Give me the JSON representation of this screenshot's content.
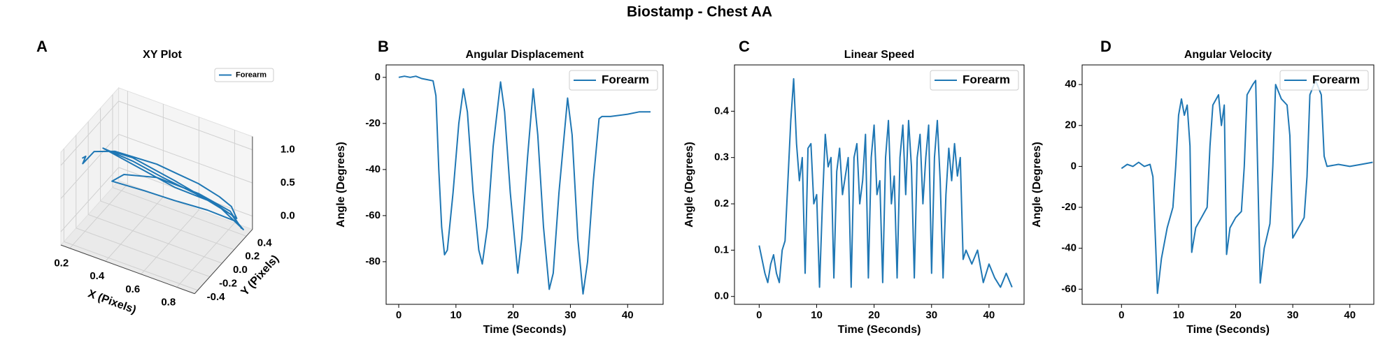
{
  "suptitle": "Biostamp - Chest AA",
  "chart_data": [
    {
      "type": "line3d",
      "panel_label": "A",
      "title": "XY Plot",
      "xlabel": "X (Pixels)",
      "ylabel": "Y (Pixels)",
      "legend": "upper right",
      "xlim": [
        0.15,
        0.9
      ],
      "ylim": [
        -0.45,
        0.5
      ],
      "zlim": [
        -0.2,
        1.2
      ],
      "xticks": [
        0.2,
        0.4,
        0.6,
        0.8
      ],
      "yticks": [
        -0.4,
        -0.2,
        {
          "value": 0,
          "label": "0.0"
        },
        0.2,
        0.4
      ],
      "zticks": [
        {
          "value": 0,
          "label": "0.0"
        },
        0.5,
        {
          "value": 1,
          "label": "1.0"
        }
      ],
      "series": [
        {
          "name": "Forearm",
          "color": "#1f77b4",
          "x": [
            0.15,
            0.17,
            0.16,
            0.2,
            0.3,
            0.4,
            0.5,
            0.6,
            0.7,
            0.8,
            0.85,
            0.88,
            0.8,
            0.7,
            0.55,
            0.4,
            0.25,
            0.3,
            0.45,
            0.6,
            0.75,
            0.86,
            0.9,
            0.85,
            0.7,
            0.5,
            0.35,
            0.3,
            0.45,
            0.6,
            0.75,
            0.88,
            0.9,
            0.8,
            0.6,
            0.4,
            0.3
          ],
          "y": [
            -0.1,
            -0.1,
            -0.12,
            -0.05,
            0,
            0.05,
            0.1,
            0.15,
            0.2,
            0.25,
            0.3,
            0.3,
            0.25,
            0.15,
            0.05,
            0,
            -0.05,
            0,
            0.05,
            0.1,
            0.2,
            0.28,
            0.32,
            0.28,
            0.2,
            0.1,
            0,
            -0.05,
            0.05,
            0.1,
            0.2,
            0.3,
            0.35,
            0.25,
            0.1,
            0,
            -0.05
          ],
          "z": [
            0.75,
            0.8,
            0.7,
            0.85,
            0.9,
            0.85,
            0.8,
            0.7,
            0.6,
            0.45,
            0.3,
            0.15,
            0.3,
            0.5,
            0.7,
            0.85,
            0.95,
            0.85,
            0.7,
            0.55,
            0.4,
            0.2,
            0,
            0.25,
            0.45,
            0.6,
            0.6,
            0.5,
            0.4,
            0.35,
            0.25,
            0.1,
            -0.05,
            0.3,
            0.65,
            0.9,
            0.95
          ]
        }
      ]
    },
    {
      "type": "line",
      "panel_label": "B",
      "title": "Angular Displacement",
      "xlabel": "Time (Seconds)",
      "ylabel": "Angle (Degrees)",
      "legend": "upper right",
      "xlim": [
        -2.2,
        46.2
      ],
      "ylim": [
        -98.5,
        5.4
      ],
      "xticks": [
        0,
        10,
        20,
        30,
        40
      ],
      "yticks": [
        0,
        -20,
        -40,
        -60,
        -80
      ],
      "series": [
        {
          "name": "Forearm",
          "color": "#1f77b4",
          "x": [
            0,
            1,
            2,
            3,
            4,
            5,
            6,
            6.5,
            7,
            7.5,
            8,
            8.5,
            9.5,
            10.5,
            11.3,
            12,
            13,
            14,
            14.6,
            15.5,
            16.5,
            17.8,
            18.5,
            19.5,
            20.8,
            21.5,
            22.5,
            23.5,
            24.3,
            25.3,
            26.3,
            27,
            28,
            29.5,
            30.3,
            31.3,
            32.2,
            33,
            34,
            35,
            35.5,
            37,
            40,
            42,
            44
          ],
          "values": [
            0,
            0.5,
            0,
            0.5,
            -0.5,
            -1,
            -1.5,
            -8,
            -40,
            -65,
            -77,
            -75,
            -50,
            -20,
            -5,
            -15,
            -50,
            -75,
            -81,
            -65,
            -30,
            -2,
            -15,
            -50,
            -85,
            -70,
            -35,
            -5,
            -25,
            -65,
            -92,
            -85,
            -50,
            -9,
            -25,
            -70,
            -94,
            -80,
            -45,
            -18,
            -17,
            -17,
            -16,
            -15,
            -15
          ]
        }
      ]
    },
    {
      "type": "line",
      "panel_label": "C",
      "title": "Linear Speed",
      "xlabel": "Time (Seconds)",
      "ylabel": "Angle (Degrees)",
      "legend": "upper right",
      "xlim": [
        -4.3,
        46.1
      ],
      "ylim": [
        -0.017,
        0.5
      ],
      "xticks": [
        0,
        10,
        20,
        30,
        40
      ],
      "yticks": [
        {
          "value": 0,
          "label": "0.0"
        },
        0.1,
        0.2,
        0.3,
        0.4
      ],
      "series": [
        {
          "name": "Forearm",
          "color": "#1f77b4",
          "x": [
            0,
            0.5,
            1,
            1.5,
            2,
            2.5,
            3,
            3.5,
            4,
            4.5,
            5,
            5.5,
            6,
            6.5,
            7,
            7.5,
            8,
            8.5,
            9,
            9.5,
            10,
            10.5,
            11,
            11.5,
            12,
            12.5,
            13,
            13.5,
            14,
            14.5,
            15,
            15.5,
            16,
            16.5,
            17,
            17.5,
            18,
            18.5,
            19,
            19.5,
            20,
            20.5,
            21,
            21.5,
            22,
            22.5,
            23,
            23.5,
            24,
            24.5,
            25,
            25.5,
            26,
            26.5,
            27,
            27.5,
            28,
            28.5,
            29,
            29.5,
            30,
            30.5,
            31,
            31.5,
            32,
            32.5,
            33,
            33.5,
            34,
            34.5,
            35,
            35.5,
            36,
            37,
            38,
            39,
            40,
            41,
            42,
            43,
            44
          ],
          "values": [
            0.11,
            0.08,
            0.05,
            0.03,
            0.07,
            0.09,
            0.05,
            0.03,
            0.1,
            0.12,
            0.25,
            0.38,
            0.47,
            0.33,
            0.25,
            0.3,
            0.05,
            0.32,
            0.33,
            0.2,
            0.22,
            0.02,
            0.2,
            0.35,
            0.28,
            0.3,
            0.04,
            0.27,
            0.32,
            0.22,
            0.26,
            0.3,
            0.02,
            0.3,
            0.33,
            0.2,
            0.25,
            0.35,
            0.04,
            0.3,
            0.37,
            0.22,
            0.25,
            0.03,
            0.3,
            0.38,
            0.2,
            0.26,
            0.04,
            0.3,
            0.37,
            0.22,
            0.38,
            0.28,
            0.04,
            0.3,
            0.35,
            0.2,
            0.3,
            0.37,
            0.05,
            0.3,
            0.38,
            0.25,
            0.04,
            0.22,
            0.32,
            0.25,
            0.33,
            0.26,
            0.3,
            0.08,
            0.1,
            0.07,
            0.1,
            0.03,
            0.07,
            0.04,
            0.02,
            0.05,
            0.02
          ]
        }
      ]
    },
    {
      "type": "line",
      "panel_label": "D",
      "title": "Angular Velocity",
      "xlabel": "Time (Seconds)",
      "ylabel": "Angle (Degrees)",
      "legend": "upper right",
      "xlim": [
        -6.9,
        44.2
      ],
      "ylim": [
        -67.4,
        49.6
      ],
      "xticks": [
        0,
        10,
        20,
        30,
        40
      ],
      "yticks": [
        -60,
        -40,
        -20,
        0,
        20,
        40
      ],
      "series": [
        {
          "name": "Forearm",
          "color": "#1f77b4",
          "x": [
            0,
            1,
            2,
            3,
            4,
            5,
            5.5,
            6,
            6.3,
            7,
            8,
            9,
            9.5,
            10,
            10.5,
            11,
            11.5,
            12,
            12.3,
            13,
            14,
            15,
            15.5,
            16,
            17,
            17.5,
            18,
            18.4,
            19,
            20,
            21,
            21.5,
            22,
            23,
            23.5,
            24.3,
            25,
            26,
            26.5,
            27,
            28,
            29,
            29.5,
            30,
            31,
            32,
            32.5,
            33,
            34,
            35,
            35.5,
            36,
            38,
            40,
            42,
            44
          ],
          "values": [
            -1,
            1,
            0,
            2,
            0,
            1,
            -5,
            -40,
            -62,
            -45,
            -30,
            -20,
            0,
            25,
            33,
            25,
            30,
            10,
            -42,
            -30,
            -25,
            -20,
            10,
            30,
            35,
            20,
            30,
            -43,
            -30,
            -25,
            -22,
            0,
            35,
            40,
            42,
            -57,
            -40,
            -28,
            0,
            40,
            33,
            30,
            15,
            -35,
            -30,
            -25,
            -5,
            35,
            42,
            35,
            5,
            0,
            1,
            0,
            1,
            2
          ]
        }
      ]
    }
  ]
}
